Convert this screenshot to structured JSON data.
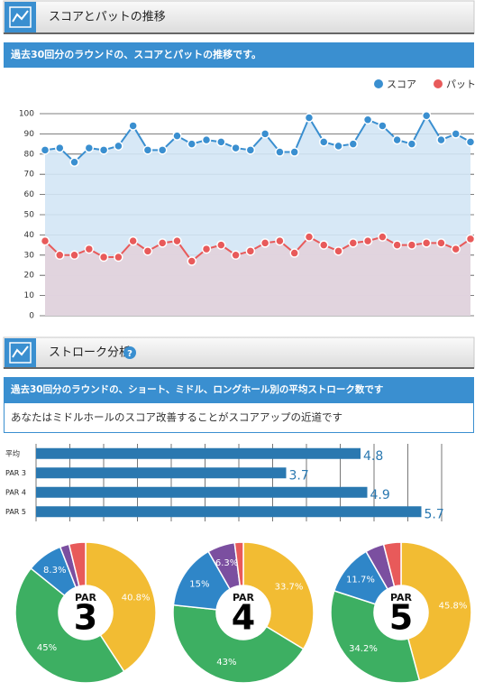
{
  "sections": [
    {
      "title": "スコアとパットの推移",
      "description": "過去30回分のラウンドの、スコアとパットの推移です。"
    },
    {
      "title": "ストローク分析",
      "help": "?",
      "description": "過去30回分のラウンドの、ショート、ミドル、ロングホール別の平均ストローク数です",
      "advice": "あなたはミドルホールのスコア改善することがスコアアップの近道です"
    }
  ],
  "chart_data": [
    {
      "type": "line",
      "legend": "top-right",
      "grid": true,
      "ylim": [
        0,
        100
      ],
      "yticks": [
        0,
        10,
        20,
        30,
        40,
        50,
        60,
        70,
        80,
        90,
        100
      ],
      "series": [
        {
          "name": "スコア",
          "color": "#3a8fd0",
          "area_color": "#d3e5f5",
          "values": [
            82,
            83,
            76,
            83,
            82,
            84,
            94,
            82,
            82,
            89,
            85,
            87,
            86,
            83,
            82,
            90,
            81,
            81,
            98,
            86,
            84,
            85,
            97,
            94,
            87,
            85,
            99,
            87,
            90,
            86
          ]
        },
        {
          "name": "パット",
          "color": "#e85a5a",
          "area_color": "#e2d1db",
          "values": [
            37,
            30,
            30,
            33,
            29,
            29,
            37,
            32,
            36,
            37,
            27,
            33,
            35,
            30,
            32,
            36,
            37,
            31,
            39,
            35,
            32,
            36,
            37,
            39,
            35,
            35,
            36,
            36,
            33,
            38
          ]
        }
      ]
    },
    {
      "type": "barh",
      "categories": [
        "平均",
        "PAR 3",
        "PAR 4",
        "PAR 5"
      ],
      "values": [
        4.8,
        3.7,
        4.9,
        5.7
      ],
      "color": "#2a78b0",
      "xlim": [
        0,
        6
      ],
      "xticks": [
        0,
        0.5,
        1,
        1.5,
        2,
        2.5,
        3,
        3.5,
        4,
        4.5,
        5,
        5.5,
        6
      ],
      "grid": true
    },
    {
      "type": "pie",
      "center_label": "PAR",
      "center_value": 3,
      "colors": [
        "#f2bc33",
        "#3daf62",
        "#2f86c8",
        "#7b4fa0",
        "#e85a5a"
      ],
      "values": [
        40.8,
        45,
        8.3,
        2.1,
        3.8
      ],
      "value_labels": [
        "40.8%",
        "45%",
        "8.3%",
        null,
        null
      ]
    },
    {
      "type": "pie",
      "center_label": "PAR",
      "center_value": 4,
      "colors": [
        "#f2bc33",
        "#3daf62",
        "#2f86c8",
        "#7b4fa0",
        "#e85a5a"
      ],
      "values": [
        33.7,
        43,
        15,
        6.3,
        2
      ],
      "value_labels": [
        "33.7%",
        "43%",
        "15%",
        "6.3%",
        null
      ]
    },
    {
      "type": "pie",
      "center_label": "PAR",
      "center_value": 5,
      "colors": [
        "#f2bc33",
        "#3daf62",
        "#2f86c8",
        "#7b4fa0",
        "#e85a5a"
      ],
      "values": [
        45.8,
        34.2,
        11.7,
        4.3,
        4
      ],
      "value_labels": [
        "45.8%",
        "34.2%",
        "11.7%",
        null,
        null
      ]
    }
  ]
}
